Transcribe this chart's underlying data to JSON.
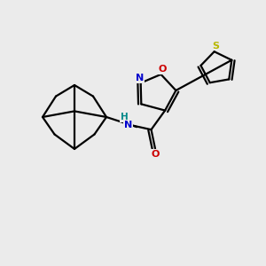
{
  "background_color": "#ebebeb",
  "bond_color": "#000000",
  "n_color": "#0000cc",
  "o_color": "#cc0000",
  "s_color": "#b8b800",
  "nh_color": "#008888",
  "figsize": [
    3.0,
    3.0
  ],
  "dpi": 100,
  "xlim": [
    0,
    10
  ],
  "ylim": [
    0,
    10
  ]
}
